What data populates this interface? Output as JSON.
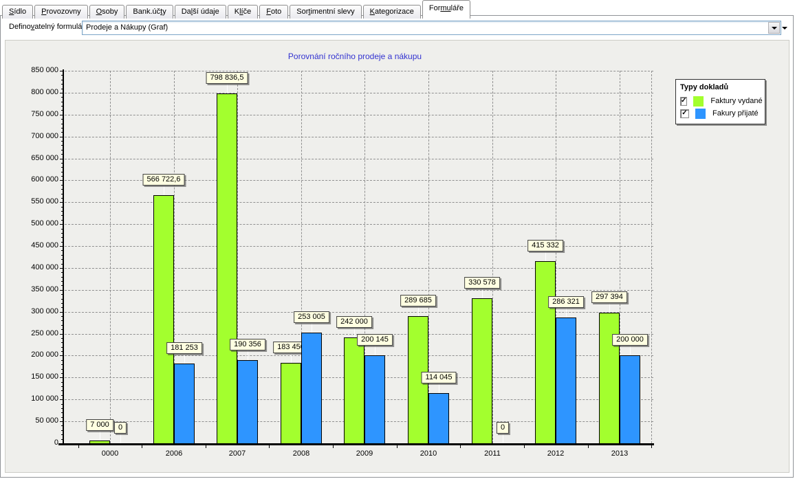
{
  "tabs": [
    {
      "id": "sidlo",
      "pre": "",
      "accel": "S",
      "post": "ídlo",
      "active": false
    },
    {
      "id": "provozovny",
      "pre": "",
      "accel": "P",
      "post": "rovozovny",
      "active": false
    },
    {
      "id": "osoby",
      "pre": "",
      "accel": "O",
      "post": "soby",
      "active": false
    },
    {
      "id": "bank-ucty",
      "pre": "Bank.úč",
      "accel": "t",
      "post": "y",
      "active": false
    },
    {
      "id": "dalsi-udaje",
      "pre": "Da",
      "accel": "l",
      "post": "ší údaje",
      "active": false
    },
    {
      "id": "klice",
      "pre": "K",
      "accel": "lí",
      "post": "če",
      "active": false
    },
    {
      "id": "foto",
      "pre": "",
      "accel": "F",
      "post": "oto",
      "active": false
    },
    {
      "id": "sortimentni-slevy",
      "pre": "Sor",
      "accel": "t",
      "post": "imentní slevy",
      "active": false
    },
    {
      "id": "kategorizace",
      "pre": "",
      "accel": "K",
      "post": "ategorizace",
      "active": false
    },
    {
      "id": "formulare",
      "pre": "For",
      "accel": "mu",
      "post": "láře",
      "active": true
    }
  ],
  "toolbar": {
    "label": {
      "pre": "Defino",
      "accel": "v",
      "post": "atelný formulář:"
    },
    "combo_value": "Prodeje a Nákupy (Graf)"
  },
  "chart_data": {
    "type": "bar",
    "title": "Porovnání ročního prodeje a nákupu",
    "categories": [
      "0000",
      "2006",
      "2007",
      "2008",
      "2009",
      "2010",
      "2011",
      "2012",
      "2013"
    ],
    "series": [
      {
        "id": "faktury-vydane",
        "name": "Faktury vydané",
        "color": "#A3FF2E",
        "checked": true,
        "values": [
          7000,
          566722.6,
          798836.5,
          183450,
          242000,
          289685,
          330578,
          415332,
          297394
        ],
        "value_labels": [
          "7 000",
          "566 722,6",
          "798 836,5",
          "183 450",
          "242 000",
          "289 685",
          "330 578",
          "415 332",
          "297 394"
        ]
      },
      {
        "id": "fakury-prijate",
        "name": "Fakury přijaté",
        "color": "#2E95FF",
        "checked": true,
        "values": [
          0,
          181253,
          190356,
          253005,
          200145,
          114045,
          0,
          286321,
          200000
        ],
        "value_labels": [
          "0",
          "181 253",
          "190 356",
          "253 005",
          "200 145",
          "114 045",
          "0",
          "286 321",
          "200 000"
        ]
      }
    ],
    "ylim": [
      0,
      850000
    ],
    "ytick_step": 50000,
    "yminor_step": 10000,
    "grid": true,
    "legend_title": "Typy dokladů",
    "legend_position": "top-right",
    "colors": {
      "plot_bg": "#EFEFEC",
      "label_bg": "#FFFFE1",
      "title": "#3232D0",
      "grid": "#8F8F8F"
    }
  }
}
